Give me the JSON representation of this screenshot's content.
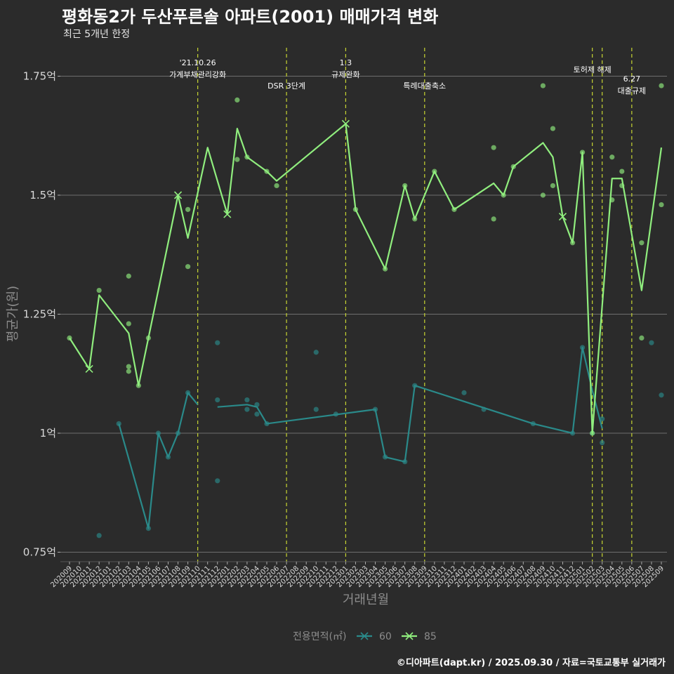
{
  "title": "평화동2가 두산푸른솔 아파트(2001) 매매가격 변화",
  "subtitle": "최근 5개년 한정",
  "caption": "©디아파트(dapt.kr) / 2025.09.30 / 자료=국토교통부 실거래가",
  "colors": {
    "background": "#2b2b2b",
    "grid": "#6e6e6e",
    "series_60": "#2a8a8a",
    "series_85": "#90ee7e",
    "vline": "#c8d632"
  },
  "chart_data": {
    "type": "line",
    "xlabel": "거래년월",
    "ylabel": "평균가(원)",
    "y_ticks": [
      {
        "value": 0.75,
        "label": "0.75억"
      },
      {
        "value": 1.0,
        "label": "1억"
      },
      {
        "value": 1.25,
        "label": "1.25억"
      },
      {
        "value": 1.5,
        "label": "1.5억"
      },
      {
        "value": 1.75,
        "label": "1.75억"
      }
    ],
    "ylim": [
      0.73,
      1.8
    ],
    "grid": true,
    "legend_position": "bottom",
    "legend_title": "전용면적(㎡)",
    "categories": [
      "202009",
      "202010",
      "202011",
      "202012",
      "202101",
      "202102",
      "202103",
      "202104",
      "202105",
      "202106",
      "202107",
      "202108",
      "202109",
      "202110",
      "202111",
      "202112",
      "202201",
      "202202",
      "202203",
      "202204",
      "202205",
      "202206",
      "202207",
      "202208",
      "202209",
      "202210",
      "202211",
      "202212",
      "202301",
      "202302",
      "202303",
      "202304",
      "202305",
      "202306",
      "202307",
      "202308",
      "202309",
      "202310",
      "202311",
      "202312",
      "202401",
      "202402",
      "202403",
      "202404",
      "202405",
      "202406",
      "202407",
      "202408",
      "202409",
      "202410",
      "202411",
      "202412",
      "202501",
      "202502",
      "202503",
      "202504",
      "202505",
      "202506",
      "202507",
      "202508",
      "202509"
    ],
    "vlines": [
      {
        "x": "202110",
        "label": "'21.10.26\n가계부채관리강화"
      },
      {
        "x": "202207",
        "label": "DSR 3단계"
      },
      {
        "x": "202301",
        "label": "1.3\n규제완화"
      },
      {
        "x": "202309",
        "label": "특례대출축소"
      },
      {
        "x": "202502",
        "label": "토허제 해제"
      },
      {
        "x": "202503",
        "label": ""
      },
      {
        "x": "202506",
        "label": "6.27\n대출규제"
      }
    ],
    "series": [
      {
        "name": "60",
        "line": [
          [
            "202102",
            1.02
          ],
          [
            "202105",
            0.8
          ],
          [
            "202106",
            1.0
          ],
          [
            "202107",
            0.95
          ],
          [
            "202108",
            1.0
          ],
          [
            "202109",
            1.085
          ],
          [
            "202110",
            1.06
          ],
          [
            "202111",
            null
          ],
          [
            "202112",
            1.055
          ],
          [
            "202203",
            1.06
          ],
          [
            "202204",
            1.055
          ],
          [
            "202205",
            1.02
          ],
          [
            "202304",
            1.05
          ],
          [
            "202305",
            0.95
          ],
          [
            "202307",
            0.94
          ],
          [
            "202308",
            1.1
          ],
          [
            "202408",
            1.02
          ],
          [
            "202412",
            1.0
          ],
          [
            "202501",
            1.18
          ],
          [
            "202502",
            1.09
          ],
          [
            "202503",
            1.01
          ]
        ],
        "points": [
          [
            "202012",
            0.785
          ],
          [
            "202102",
            1.02
          ],
          [
            "202105",
            0.8
          ],
          [
            "202106",
            1.0
          ],
          [
            "202107",
            0.95
          ],
          [
            "202108",
            1.0
          ],
          [
            "202109",
            1.085
          ],
          [
            "202112",
            0.9
          ],
          [
            "202112",
            1.19
          ],
          [
            "202112",
            1.07
          ],
          [
            "202203",
            1.07
          ],
          [
            "202203",
            1.05
          ],
          [
            "202204",
            1.04
          ],
          [
            "202204",
            1.06
          ],
          [
            "202205",
            1.02
          ],
          [
            "202210",
            1.05
          ],
          [
            "202210",
            1.17
          ],
          [
            "202212",
            1.04
          ],
          [
            "202304",
            1.05
          ],
          [
            "202305",
            0.95
          ],
          [
            "202307",
            0.94
          ],
          [
            "202308",
            1.1
          ],
          [
            "202401",
            1.085
          ],
          [
            "202403",
            1.05
          ],
          [
            "202408",
            1.02
          ],
          [
            "202412",
            1.0
          ],
          [
            "202501",
            1.18
          ],
          [
            "202502",
            1.0
          ],
          [
            "202503",
            0.98
          ],
          [
            "202503",
            1.03
          ],
          [
            "202508",
            1.19
          ],
          [
            "202509",
            1.08
          ]
        ],
        "markers": []
      },
      {
        "name": "85",
        "line": [
          [
            "202009",
            1.2
          ],
          [
            "202011",
            1.135
          ],
          [
            "202012",
            1.29
          ],
          [
            "202103",
            1.21
          ],
          [
            "202104",
            1.1
          ],
          [
            "202108",
            1.5
          ],
          [
            "202109",
            1.41
          ],
          [
            "202111",
            1.6
          ],
          [
            "202201",
            1.46
          ],
          [
            "202202",
            1.64
          ],
          [
            "202203",
            1.58
          ],
          [
            "202205",
            1.55
          ],
          [
            "202206",
            1.53
          ],
          [
            "202301",
            1.65
          ],
          [
            "202302",
            1.47
          ],
          [
            "202305",
            1.345
          ],
          [
            "202307",
            1.52
          ],
          [
            "202308",
            1.45
          ],
          [
            "202310",
            1.55
          ],
          [
            "202312",
            1.47
          ],
          [
            "202404",
            1.525
          ],
          [
            "202405",
            1.5
          ],
          [
            "202406",
            1.56
          ],
          [
            "202409",
            1.61
          ],
          [
            "202410",
            1.58
          ],
          [
            "202411",
            1.455
          ],
          [
            "202412",
            1.4
          ],
          [
            "202501",
            1.59
          ],
          [
            "202502",
            1.0
          ],
          [
            "202504",
            1.535
          ],
          [
            "202505",
            1.535
          ],
          [
            "202507",
            1.3
          ],
          [
            "202509",
            1.6
          ]
        ],
        "points": [
          [
            "202009",
            1.2
          ],
          [
            "202012",
            1.3
          ],
          [
            "202103",
            1.33
          ],
          [
            "202103",
            1.23
          ],
          [
            "202103",
            1.14
          ],
          [
            "202103",
            1.13
          ],
          [
            "202104",
            1.1
          ],
          [
            "202105",
            1.2
          ],
          [
            "202109",
            1.47
          ],
          [
            "202109",
            1.35
          ],
          [
            "202202",
            1.7
          ],
          [
            "202202",
            1.575
          ],
          [
            "202203",
            1.58
          ],
          [
            "202205",
            1.55
          ],
          [
            "202206",
            1.52
          ],
          [
            "202302",
            1.47
          ],
          [
            "202305",
            1.345
          ],
          [
            "202307",
            1.52
          ],
          [
            "202308",
            1.45
          ],
          [
            "202310",
            1.55
          ],
          [
            "202312",
            1.47
          ],
          [
            "202404",
            1.6
          ],
          [
            "202404",
            1.45
          ],
          [
            "202405",
            1.5
          ],
          [
            "202406",
            1.56
          ],
          [
            "202409",
            1.73
          ],
          [
            "202409",
            1.5
          ],
          [
            "202410",
            1.64
          ],
          [
            "202410",
            1.52
          ],
          [
            "202412",
            1.4
          ],
          [
            "202501",
            1.59
          ],
          [
            "202502",
            1.0
          ],
          [
            "202504",
            1.58
          ],
          [
            "202504",
            1.49
          ],
          [
            "202505",
            1.55
          ],
          [
            "202505",
            1.52
          ],
          [
            "202507",
            1.4
          ],
          [
            "202507",
            1.2
          ],
          [
            "202509",
            1.73
          ],
          [
            "202509",
            1.48
          ]
        ],
        "markers": [
          [
            "202011",
            1.135
          ],
          [
            "202108",
            1.5
          ],
          [
            "202201",
            1.46
          ],
          [
            "202301",
            1.65
          ],
          [
            "202411",
            1.455
          ]
        ]
      }
    ]
  }
}
